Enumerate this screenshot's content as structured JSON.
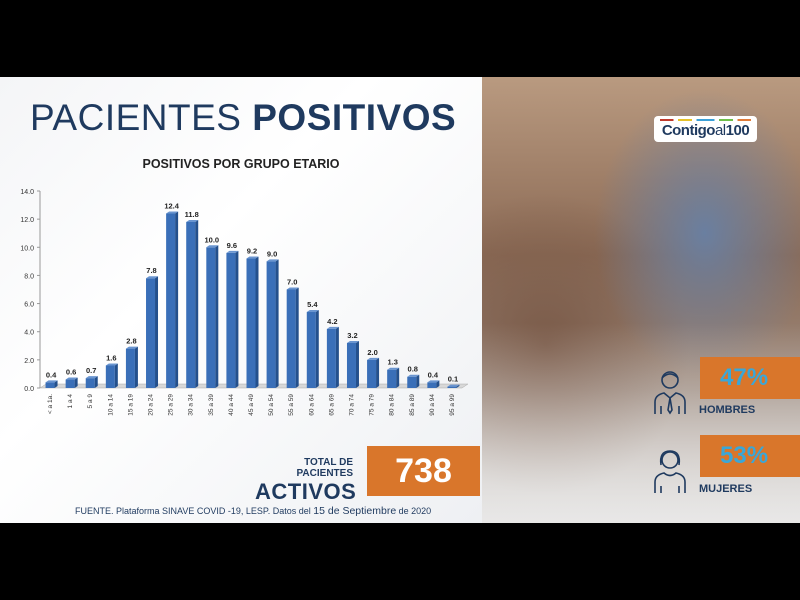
{
  "header": {
    "title_light": "PACIENTES ",
    "title_bold": "POSITIVOS"
  },
  "chart_data": {
    "type": "bar",
    "title": "POSITIVOS POR GRUPO ETARIO",
    "categories": [
      "< a 1a.",
      "1 a 4",
      "5 a 9",
      "10 a 14",
      "15 a 19",
      "20 a 24",
      "25 a 29",
      "30 a 34",
      "35 a 39",
      "40 a 44",
      "45 a 49",
      "50 a 54",
      "55 a 59",
      "60 a 64",
      "65 a 69",
      "70 a 74",
      "75 a 79",
      "80 a 84",
      "85 a 89",
      "90 a 94",
      "95 a 99"
    ],
    "values": [
      0.4,
      0.6,
      0.7,
      1.6,
      2.8,
      7.8,
      12.4,
      11.8,
      10.0,
      9.6,
      9.2,
      9.0,
      7.0,
      5.4,
      4.2,
      3.2,
      2.0,
      1.3,
      0.8,
      0.4,
      0.1
    ],
    "value_labels": [
      "0.4",
      "0.6",
      "0.7",
      "1.6",
      "2.8",
      "7.8",
      "12.4",
      "11.8",
      "10.0",
      "9.6",
      "9.2",
      "9.0",
      "7.0",
      "5.4",
      "4.2",
      "3.2",
      "2.0",
      "1.3",
      "0.8",
      "0.4",
      "0.1"
    ],
    "ylim": [
      0,
      14
    ],
    "yticks": [
      "0.0",
      "2.0",
      "4.0",
      "6.0",
      "8.0",
      "10.0",
      "12.0",
      "14.0"
    ],
    "bar_color": "#3a6fb8"
  },
  "total": {
    "label_small": "TOTAL DE PACIENTES",
    "label_big": "ACTIVOS",
    "value": "738"
  },
  "source": {
    "prefix": "FUENTE. Plataforma SINAVE COVID -19, LESP. Datos del ",
    "date": "15 de Septiembre",
    "suffix": " de 2020"
  },
  "logo": {
    "text_a": "Contigo",
    "text_b": "al",
    "text_c": "100"
  },
  "stats": [
    {
      "value": "47%",
      "label": "HOMBRES",
      "icon": "man-icon"
    },
    {
      "value": "53%",
      "label": "MUJERES",
      "icon": "woman-icon"
    }
  ],
  "colors": {
    "navy": "#1f3a5f",
    "orange": "#d9762b",
    "cyan": "#3aa7d8"
  }
}
